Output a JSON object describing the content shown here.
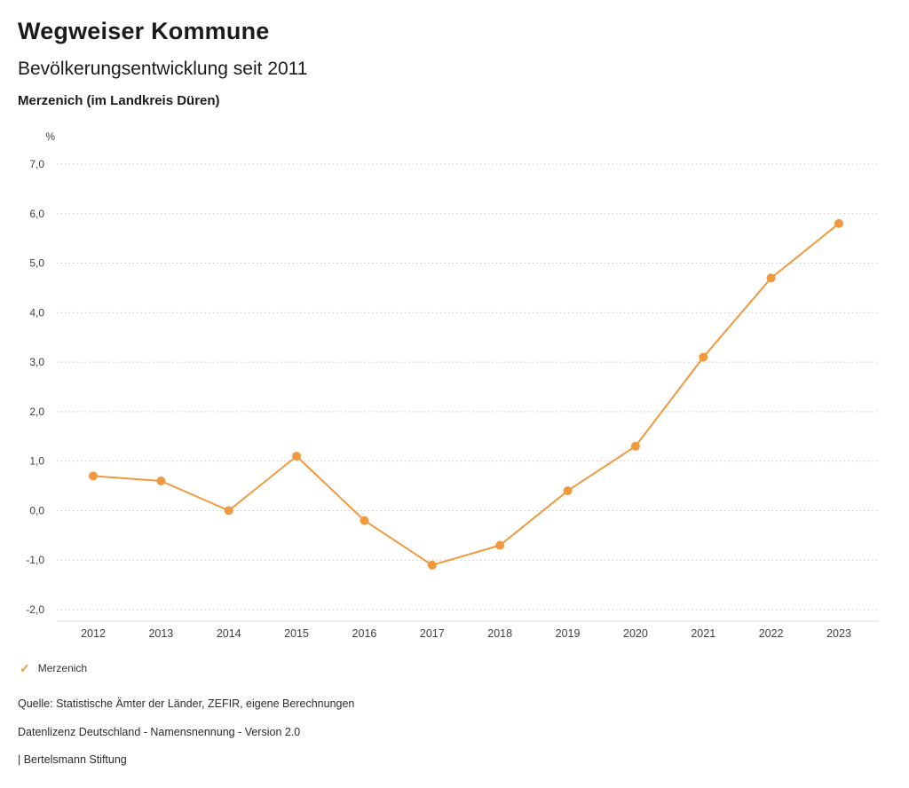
{
  "header": {
    "title": "Wegweiser Kommune",
    "subtitle": "Bevölkerungsentwicklung seit 2011",
    "region": "Merzenich (im Landkreis Düren)"
  },
  "chart_data": {
    "type": "line",
    "title": "Bevölkerungsentwicklung seit 2011",
    "subtitle": "Merzenich (im Landkreis Düren)",
    "xlabel": "",
    "ylabel": "%",
    "categories": [
      "2012",
      "2013",
      "2014",
      "2015",
      "2016",
      "2017",
      "2018",
      "2019",
      "2020",
      "2021",
      "2022",
      "2023"
    ],
    "series": [
      {
        "name": "Merzenich",
        "color": "#F0993E",
        "values": [
          0.7,
          0.6,
          0.0,
          1.1,
          -0.2,
          -1.1,
          -0.7,
          0.4,
          1.3,
          3.1,
          4.7,
          5.8
        ]
      }
    ],
    "ylim": [
      -2.0,
      7.0
    ],
    "ytick_step": 1.0,
    "decimal_separator": ",",
    "grid": "dotted-horizontal",
    "legend_position": "bottom-left"
  },
  "legend": {
    "items": [
      {
        "label": "Merzenich",
        "color": "#F0993E",
        "symbol": "check",
        "glyph": "✓"
      }
    ]
  },
  "footer": {
    "source": "Quelle: Statistische Ämter der Länder, ZEFIR, eigene Berechnungen",
    "license": "Datenlizenz Deutschland - Namensnennung - Version 2.0",
    "publisher": "| Bertelsmann Stiftung"
  }
}
